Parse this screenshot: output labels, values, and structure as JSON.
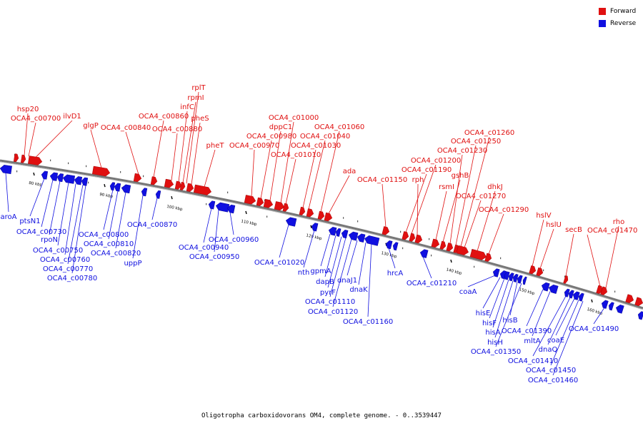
{
  "colors": {
    "forward": "#e01010",
    "reverse": "#1010e0",
    "backbone": "#777777"
  },
  "legend": {
    "forward": "Forward",
    "reverse": "Reverse"
  },
  "caption": "Oligotropha carboxidovorans OM4, complete genome. - 0..3539447",
  "ticks": [
    "80 kbp",
    "90 kbp",
    "100 kbp",
    "110 kbp",
    "120 kbp",
    "130 kbp",
    "140 kbp",
    "150 kbp",
    "160 kbp"
  ],
  "forward_labels": [
    "hsp20",
    "OCA4_c00700",
    "ilvD1",
    "glgP",
    "OCA4_c00840",
    "OCA4_c00860",
    "OCA4_c00880",
    "infC",
    "rpmI",
    "rplT",
    "pheS",
    "pheT",
    "OCA4_c00970",
    "OCA4_c00980",
    "dppC1",
    "OCA4_c01000",
    "OCA4_c01010",
    "OCA4_c01030",
    "OCA4_c01040",
    "OCA4_c01060",
    "ada",
    "OCA4_c01150",
    "OCA4_c01190",
    "OCA4_c01200",
    "rph",
    "rsmI",
    "gshB",
    "OCA4_c01230",
    "OCA4_c01250",
    "OCA4_c01260",
    "OCA4_c01270",
    "dhkJ",
    "OCA4_c01290",
    "hslV",
    "hslU",
    "secB",
    "OCA4_c01470",
    "rho"
  ],
  "reverse_labels": [
    "aroA",
    "ptsN1",
    "OCA4_c00730",
    "rpoN",
    "OCA4_c00750",
    "OCA4_c00760",
    "OCA4_c00770",
    "OCA4_c00780",
    "OCA4_c00800",
    "OCA4_c00810",
    "OCA4_c00820",
    "uppP",
    "OCA4_c00870",
    "OCA4_c00940",
    "OCA4_c00950",
    "OCA4_c00960",
    "OCA4_c01020",
    "nth",
    "gpmA",
    "dapB",
    "pyrF",
    "OCA4_c01110",
    "OCA4_c01120",
    "dnaJ1",
    "dnaK",
    "OCA4_c01160",
    "hrcA",
    "OCA4_c01210",
    "coaA",
    "hisE",
    "hisF",
    "hisA",
    "hisH",
    "hisB",
    "OCA4_c01350",
    "OCA4_c01390",
    "mltA",
    "OCA4_c01410",
    "dnaQ",
    "coaE",
    "OCA4_c01450",
    "OCA4_c01460",
    "OCA4_c01490"
  ]
}
